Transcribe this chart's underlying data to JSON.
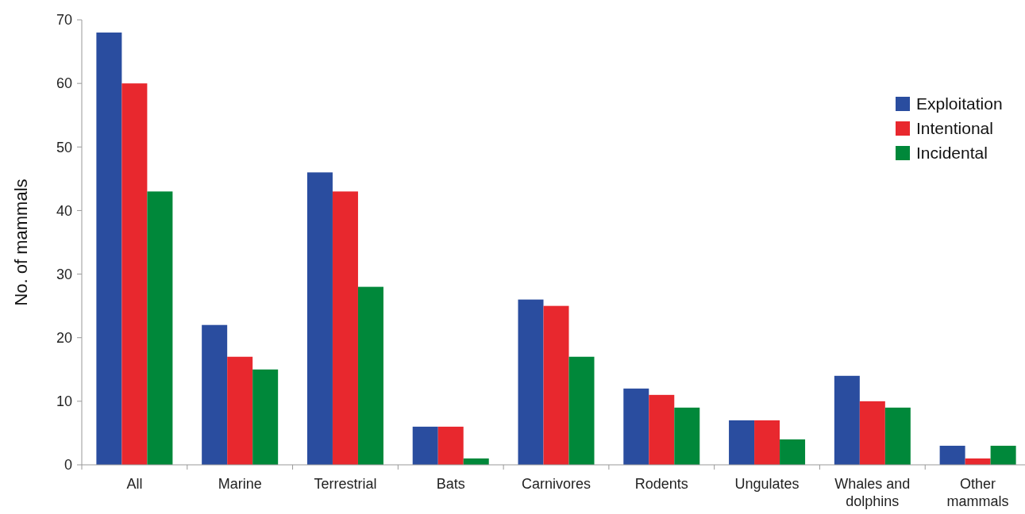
{
  "chart_data": {
    "type": "bar",
    "ylabel": "No. of mammals",
    "categories": [
      "All",
      "Marine",
      "Terrestrial",
      "Bats",
      "Carnivores",
      "Rodents",
      "Ungulates",
      "Whales and dolphins",
      "Other mammals"
    ],
    "series": [
      {
        "name": "Exploitation",
        "color": "#2a4d9f",
        "values": [
          68,
          22,
          46,
          6,
          26,
          12,
          7,
          14,
          3
        ]
      },
      {
        "name": "Intentional",
        "color": "#e8282e",
        "values": [
          60,
          17,
          43,
          6,
          25,
          11,
          7,
          10,
          1
        ]
      },
      {
        "name": "Incidental",
        "color": "#00883a",
        "values": [
          43,
          15,
          28,
          1,
          17,
          9,
          4,
          9,
          3
        ]
      }
    ],
    "ylim": [
      0,
      70
    ],
    "yticks": [
      0,
      10,
      20,
      30,
      40,
      50,
      60,
      70
    ],
    "grid": false,
    "legend": "top right"
  }
}
